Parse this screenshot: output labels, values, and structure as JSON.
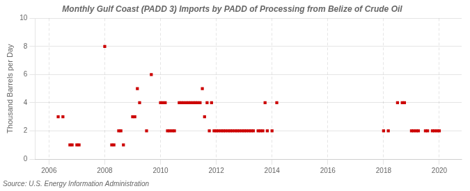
{
  "chart_data": {
    "type": "scatter",
    "title": "Monthly Gulf Coast (PADD 3) Imports by PADD of Processing from Belize of Crude Oil",
    "ylabel": "Thousand Barrels per Day",
    "source": "Source: U.S. Energy Information Administration",
    "color": "#cc0000",
    "marker": "square",
    "grid": true,
    "xlim": [
      2005.5,
      2020.8
    ],
    "ylim": [
      0,
      10
    ],
    "xticks": [
      2006,
      2008,
      2010,
      2012,
      2014,
      2016,
      2018,
      2020
    ],
    "yticks": [
      0,
      2,
      4,
      6,
      8,
      10
    ],
    "x": [
      2006.33,
      2006.5,
      2006.75,
      2006.83,
      2007.0,
      2007.08,
      2008.0,
      2008.25,
      2008.33,
      2008.5,
      2008.58,
      2008.67,
      2009.0,
      2009.08,
      2009.17,
      2009.25,
      2009.5,
      2009.67,
      2010.0,
      2010.08,
      2010.17,
      2010.25,
      2010.33,
      2010.42,
      2010.5,
      2010.67,
      2010.75,
      2010.83,
      2010.92,
      2011.0,
      2011.08,
      2011.17,
      2011.25,
      2011.33,
      2011.42,
      2011.5,
      2011.58,
      2011.67,
      2011.75,
      2011.83,
      2011.92,
      2012.0,
      2012.08,
      2012.17,
      2012.25,
      2012.33,
      2012.42,
      2012.5,
      2012.58,
      2012.67,
      2012.75,
      2012.83,
      2012.92,
      2013.0,
      2013.08,
      2013.17,
      2013.25,
      2013.33,
      2013.5,
      2013.58,
      2013.67,
      2013.75,
      2013.83,
      2014.0,
      2014.17,
      2018.0,
      2018.17,
      2018.5,
      2018.67,
      2018.75,
      2019.0,
      2019.08,
      2019.17,
      2019.25,
      2019.5,
      2019.58,
      2019.75,
      2019.83,
      2019.92,
      2020.0
    ],
    "values": [
      3,
      3,
      1,
      1,
      1,
      1,
      8,
      1,
      1,
      2,
      2,
      1,
      3,
      3,
      5,
      4,
      2,
      6,
      4,
      4,
      4,
      2,
      2,
      2,
      2,
      4,
      4,
      4,
      4,
      4,
      4,
      4,
      4,
      4,
      4,
      5,
      3,
      4,
      2,
      4,
      2,
      2,
      2,
      2,
      2,
      2,
      2,
      2,
      2,
      2,
      2,
      2,
      2,
      2,
      2,
      2,
      2,
      2,
      2,
      2,
      2,
      4,
      2,
      2,
      4,
      2,
      2,
      4,
      4,
      4,
      2,
      2,
      2,
      2,
      2,
      2,
      2,
      2,
      2,
      2
    ]
  }
}
